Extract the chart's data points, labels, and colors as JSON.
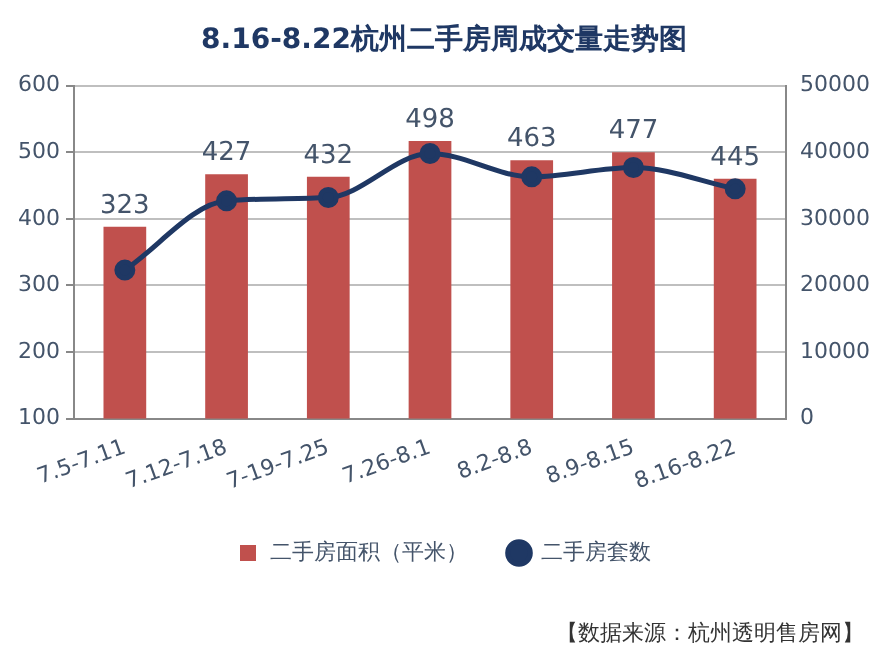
{
  "chart_data": {
    "type": "bar",
    "title": "8.16-8.22杭州二手房周成交量走势图",
    "categories": [
      "7.5-7.11",
      "7.12-7.18",
      "7-19-7.25",
      "7.26-8.1",
      "8.2-8.8",
      "8.9-8.15",
      "8.16-8.22"
    ],
    "series": [
      {
        "name": "二手房面积（平米）",
        "axis": "y2",
        "color": "#c0504d",
        "values": [
          28800,
          36700,
          36300,
          41700,
          38800,
          40000,
          36000
        ]
      },
      {
        "name": "二手房套数",
        "type": "line",
        "axis": "y",
        "color": "#1f3864",
        "marker": "circle",
        "values": [
          323,
          427,
          432,
          498,
          463,
          477,
          445
        ],
        "value_labels": [
          "323",
          "427",
          "432",
          "498",
          "463",
          "477",
          "445"
        ]
      }
    ],
    "ylim": [
      100,
      600
    ],
    "yticks": [
      100,
      200,
      300,
      400,
      500,
      600
    ],
    "y2lim": [
      0,
      50000
    ],
    "y2ticks": [
      0,
      10000,
      20000,
      30000,
      40000,
      50000
    ],
    "grid": "y",
    "legend": "bottom",
    "annotations": [
      "【数据来源：杭州透明售房网】"
    ]
  }
}
